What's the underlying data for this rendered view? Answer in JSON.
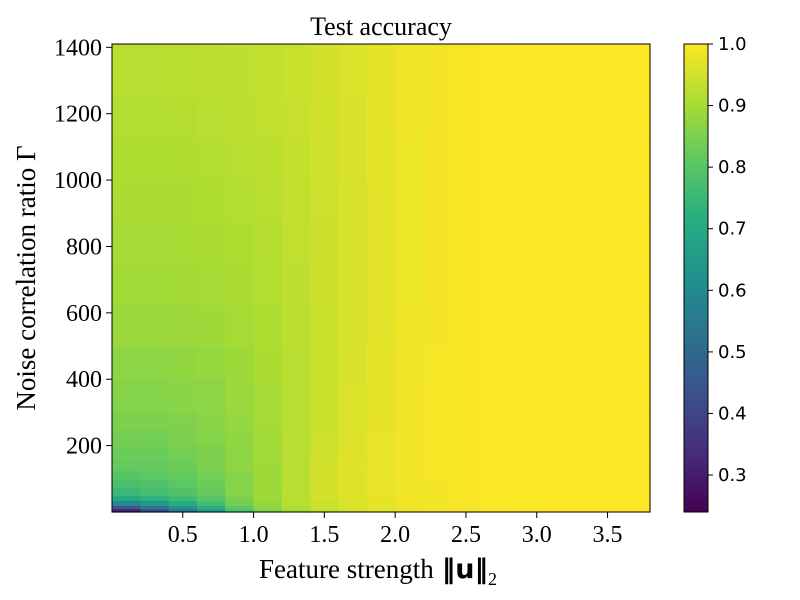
{
  "chart_data": {
    "type": "heatmap",
    "title": "Test accuracy",
    "xlabel": "Feature strength",
    "xlabel_symbol": "‖u‖",
    "xlabel_subscript": "2",
    "ylabel": "Noise correlation ratio Γ",
    "xlim": [
      0.0,
      3.8
    ],
    "ylim": [
      0,
      1410
    ],
    "x_ticks": [
      0.5,
      1.0,
      1.5,
      2.0,
      2.5,
      3.0,
      3.5
    ],
    "x_tick_labels": [
      "0.5",
      "1.0",
      "1.5",
      "2.0",
      "2.5",
      "3.0",
      "3.5"
    ],
    "y_ticks": [
      200,
      400,
      600,
      800,
      1000,
      1200,
      1400
    ],
    "y_tick_labels": [
      "200",
      "400",
      "600",
      "800",
      "1000",
      "1200",
      "1400"
    ],
    "x_edges": [
      0.0,
      0.2,
      0.4,
      0.6,
      0.8,
      1.0,
      1.2,
      1.4,
      1.6,
      1.8,
      2.0,
      2.2,
      2.4,
      2.6,
      2.8,
      3.0,
      3.2,
      3.4,
      3.6,
      3.8
    ],
    "y_edges": [
      0,
      10,
      20,
      35,
      50,
      75,
      100,
      125,
      160,
      200,
      250,
      300,
      400,
      500,
      625,
      750,
      875,
      1000,
      1125,
      1250,
      1410
    ],
    "values": [
      [
        0.3,
        0.42,
        0.55,
        0.66,
        0.78,
        0.86,
        0.9,
        0.93,
        0.95,
        0.97,
        0.98,
        0.99,
        0.99,
        0.995,
        0.997,
        0.998,
        0.999,
        0.999,
        0.999
      ],
      [
        0.45,
        0.54,
        0.63,
        0.72,
        0.81,
        0.87,
        0.91,
        0.94,
        0.96,
        0.97,
        0.98,
        0.99,
        0.99,
        0.995,
        0.997,
        0.998,
        0.999,
        0.999,
        0.999
      ],
      [
        0.6,
        0.65,
        0.71,
        0.77,
        0.84,
        0.88,
        0.92,
        0.94,
        0.96,
        0.975,
        0.985,
        0.99,
        0.993,
        0.996,
        0.997,
        0.998,
        0.999,
        0.999,
        0.999
      ],
      [
        0.7,
        0.73,
        0.76,
        0.8,
        0.85,
        0.89,
        0.92,
        0.95,
        0.96,
        0.975,
        0.985,
        0.99,
        0.993,
        0.996,
        0.997,
        0.998,
        0.999,
        0.999,
        0.999
      ],
      [
        0.75,
        0.77,
        0.79,
        0.82,
        0.86,
        0.89,
        0.92,
        0.95,
        0.965,
        0.978,
        0.986,
        0.99,
        0.994,
        0.996,
        0.997,
        0.998,
        0.999,
        0.999,
        0.999
      ],
      [
        0.78,
        0.79,
        0.81,
        0.83,
        0.86,
        0.89,
        0.92,
        0.95,
        0.965,
        0.978,
        0.986,
        0.99,
        0.994,
        0.996,
        0.998,
        0.998,
        0.999,
        0.999,
        0.999
      ],
      [
        0.8,
        0.81,
        0.82,
        0.84,
        0.86,
        0.89,
        0.92,
        0.95,
        0.965,
        0.978,
        0.987,
        0.992,
        0.994,
        0.996,
        0.998,
        0.998,
        0.999,
        0.999,
        0.999
      ],
      [
        0.82,
        0.82,
        0.83,
        0.85,
        0.87,
        0.89,
        0.92,
        0.95,
        0.966,
        0.978,
        0.987,
        0.992,
        0.995,
        0.996,
        0.998,
        0.998,
        0.999,
        0.999,
        0.999
      ],
      [
        0.83,
        0.83,
        0.84,
        0.85,
        0.87,
        0.895,
        0.92,
        0.945,
        0.965,
        0.978,
        0.987,
        0.992,
        0.995,
        0.997,
        0.998,
        0.998,
        0.999,
        0.999,
        0.999
      ],
      [
        0.84,
        0.84,
        0.85,
        0.86,
        0.875,
        0.895,
        0.92,
        0.945,
        0.963,
        0.977,
        0.987,
        0.992,
        0.995,
        0.997,
        0.998,
        0.999,
        0.999,
        0.999,
        0.999
      ],
      [
        0.85,
        0.85,
        0.855,
        0.865,
        0.88,
        0.9,
        0.92,
        0.94,
        0.96,
        0.975,
        0.986,
        0.992,
        0.995,
        0.997,
        0.998,
        0.999,
        0.999,
        0.999,
        0.999
      ],
      [
        0.86,
        0.86,
        0.865,
        0.87,
        0.885,
        0.9,
        0.92,
        0.94,
        0.96,
        0.974,
        0.985,
        0.992,
        0.995,
        0.997,
        0.998,
        0.999,
        0.999,
        0.999,
        0.999
      ],
      [
        0.87,
        0.87,
        0.875,
        0.88,
        0.89,
        0.905,
        0.92,
        0.94,
        0.958,
        0.972,
        0.984,
        0.991,
        0.995,
        0.997,
        0.998,
        0.999,
        0.999,
        0.999,
        0.999
      ],
      [
        0.885,
        0.885,
        0.888,
        0.892,
        0.9,
        0.91,
        0.925,
        0.94,
        0.956,
        0.97,
        0.983,
        0.99,
        0.994,
        0.997,
        0.998,
        0.999,
        0.999,
        0.999,
        0.999
      ],
      [
        0.895,
        0.895,
        0.897,
        0.9,
        0.905,
        0.915,
        0.928,
        0.942,
        0.956,
        0.97,
        0.982,
        0.99,
        0.994,
        0.996,
        0.998,
        0.999,
        0.999,
        0.999,
        0.999
      ],
      [
        0.9,
        0.9,
        0.902,
        0.905,
        0.91,
        0.918,
        0.93,
        0.943,
        0.956,
        0.97,
        0.982,
        0.99,
        0.994,
        0.996,
        0.998,
        0.999,
        0.999,
        0.999,
        0.999
      ],
      [
        0.905,
        0.905,
        0.907,
        0.91,
        0.915,
        0.922,
        0.932,
        0.944,
        0.957,
        0.97,
        0.982,
        0.99,
        0.994,
        0.996,
        0.998,
        0.999,
        0.999,
        0.999,
        0.999
      ],
      [
        0.91,
        0.91,
        0.912,
        0.915,
        0.92,
        0.926,
        0.935,
        0.946,
        0.958,
        0.971,
        0.982,
        0.99,
        0.994,
        0.996,
        0.998,
        0.999,
        0.999,
        0.999,
        0.999
      ],
      [
        0.915,
        0.915,
        0.917,
        0.92,
        0.924,
        0.93,
        0.938,
        0.948,
        0.959,
        0.972,
        0.983,
        0.99,
        0.994,
        0.996,
        0.998,
        0.999,
        0.999,
        0.999,
        0.999
      ],
      [
        0.92,
        0.92,
        0.922,
        0.924,
        0.928,
        0.933,
        0.94,
        0.95,
        0.96,
        0.972,
        0.983,
        0.99,
        0.994,
        0.996,
        0.998,
        0.999,
        0.999,
        0.999,
        0.999
      ]
    ],
    "colorbar": {
      "cmap": "viridis",
      "vmin": 0.24,
      "vmax": 1.0,
      "ticks": [
        0.3,
        0.4,
        0.5,
        0.6,
        0.7,
        0.8,
        0.9,
        1.0
      ],
      "tick_labels": [
        "0.3",
        "0.4",
        "0.5",
        "0.6",
        "0.7",
        "0.8",
        "0.9",
        "1.0"
      ]
    }
  }
}
